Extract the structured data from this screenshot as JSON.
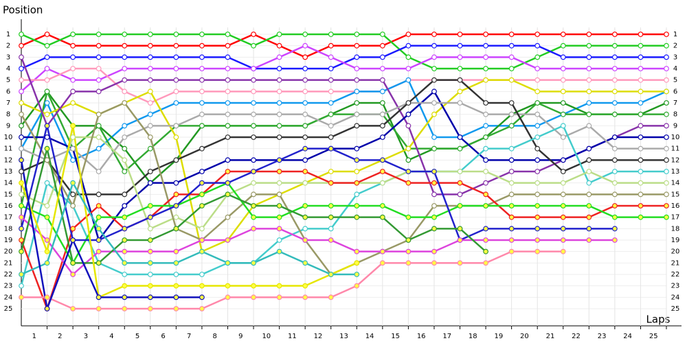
{
  "chart_data": {
    "type": "line",
    "y_label": "Position",
    "x_label": "Laps",
    "x": [
      0,
      1,
      2,
      3,
      4,
      5,
      6,
      7,
      8,
      9,
      10,
      11,
      12,
      13,
      14,
      15,
      16,
      17,
      18,
      19,
      20,
      21,
      22,
      23,
      24,
      25
    ],
    "xlim": [
      0,
      25
    ],
    "xticks": [
      1,
      2,
      3,
      4,
      5,
      6,
      7,
      8,
      9,
      10,
      11,
      12,
      13,
      14,
      15,
      16,
      17,
      18,
      19,
      20,
      21,
      22,
      23,
      24,
      25
    ],
    "ylim": [
      1,
      25
    ],
    "yticks": [
      1,
      2,
      3,
      4,
      5,
      6,
      7,
      8,
      9,
      10,
      11,
      12,
      13,
      14,
      15,
      16,
      17,
      18,
      19,
      20,
      21,
      22,
      23,
      24,
      25
    ],
    "y_inverted": true,
    "grid": true,
    "series": [
      {
        "color": "#ff0000",
        "values": [
          2,
          1,
          2,
          2,
          2,
          2,
          2,
          2,
          2,
          1,
          2,
          3,
          2,
          2,
          2,
          1,
          1,
          1,
          1,
          1,
          1,
          1,
          1,
          1,
          1,
          1
        ]
      },
      {
        "color": "#22cc22",
        "values": [
          1,
          2,
          1,
          1,
          1,
          1,
          1,
          1,
          1,
          2,
          1,
          1,
          1,
          1,
          1,
          3,
          4,
          4,
          4,
          4,
          3,
          2,
          2,
          2,
          2,
          2
        ]
      },
      {
        "color": "#1a1aff",
        "values": [
          4,
          3,
          3,
          3,
          3,
          3,
          3,
          3,
          3,
          4,
          4,
          4,
          4,
          3,
          3,
          2,
          2,
          2,
          2,
          2,
          2,
          3,
          3,
          3,
          3,
          3
        ]
      },
      {
        "color": "#cc44ff",
        "values": [
          6,
          4,
          5,
          5,
          4,
          4,
          4,
          4,
          4,
          4,
          3,
          2,
          3,
          4,
          4,
          4,
          3,
          3,
          3,
          3,
          4,
          4,
          4,
          4,
          4,
          4
        ]
      },
      {
        "color": "#ff99bb",
        "values": [
          5,
          5,
          4,
          4,
          6,
          7,
          6,
          6,
          6,
          6,
          6,
          6,
          6,
          6,
          6,
          5,
          5,
          5,
          5,
          5,
          5,
          5,
          5,
          5,
          5,
          5
        ]
      },
      {
        "color": "#1199ee",
        "values": [
          11,
          7,
          12,
          11,
          9,
          8,
          7,
          7,
          7,
          7,
          7,
          7,
          7,
          6,
          6,
          5,
          10,
          10,
          9,
          9,
          9,
          8,
          7,
          7,
          7,
          6
        ]
      },
      {
        "color": "#229922",
        "values": [
          9,
          6,
          9,
          9,
          11,
          14,
          12,
          9,
          9,
          9,
          9,
          9,
          8,
          7,
          7,
          12,
          11,
          11,
          10,
          8,
          7,
          7,
          8,
          8,
          8,
          7
        ]
      },
      {
        "color": "#33aa33",
        "values": [
          16,
          6,
          11,
          9,
          13,
          11,
          9,
          9,
          9,
          9,
          9,
          9,
          8,
          8,
          8,
          11,
          11,
          11,
          10,
          9,
          7,
          8,
          8,
          8,
          8,
          8
        ]
      },
      {
        "color": "#dddd00",
        "values": [
          7,
          8,
          7,
          8,
          7,
          6,
          10,
          20,
          19,
          16,
          15,
          14,
          13,
          13,
          12,
          11,
          8,
          6,
          5,
          5,
          6,
          6,
          6,
          6,
          6,
          6
        ]
      },
      {
        "color": "#8833aa",
        "values": [
          3,
          9,
          6,
          6,
          5,
          5,
          5,
          5,
          5,
          5,
          5,
          5,
          5,
          5,
          5,
          9,
          15,
          15,
          14,
          13,
          13,
          12,
          11,
          10,
          9,
          9
        ]
      },
      {
        "color": "#0000aa",
        "values": [
          10,
          10,
          11,
          19,
          16,
          14,
          14,
          13,
          12,
          12,
          12,
          12,
          11,
          11,
          10,
          8,
          6,
          10,
          12,
          12,
          12,
          12,
          11,
          10,
          10,
          10
        ]
      },
      {
        "color": "#aaaaaa",
        "values": [
          11,
          12,
          11,
          13,
          10,
          9,
          9,
          8,
          8,
          8,
          8,
          8,
          9,
          8,
          8,
          7,
          7,
          7,
          8,
          8,
          8,
          10,
          9,
          11,
          11,
          11
        ]
      },
      {
        "color": "#333333",
        "values": [
          13,
          12,
          15,
          15,
          15,
          13,
          12,
          11,
          10,
          10,
          10,
          10,
          10,
          9,
          9,
          7,
          5,
          5,
          7,
          7,
          11,
          13,
          12,
          12,
          12,
          12
        ]
      },
      {
        "color": "#44cccc",
        "values": [
          23,
          14,
          16,
          21,
          22,
          22,
          22,
          22,
          21,
          21,
          19,
          18,
          18,
          15,
          14,
          13,
          13,
          13,
          11,
          11,
          10,
          9,
          14,
          13,
          13,
          13
        ]
      },
      {
        "color": "#bbdd88",
        "values": [
          15,
          16,
          10,
          10,
          12,
          18,
          17,
          18,
          15,
          14,
          14,
          14,
          14,
          14,
          14,
          13,
          13,
          13,
          13,
          14,
          14,
          14,
          13,
          14,
          14,
          14
        ]
      },
      {
        "color": "#999966",
        "values": [
          8,
          12,
          16,
          8,
          7,
          10,
          18,
          19,
          17,
          15,
          15,
          19,
          22,
          21,
          20,
          19,
          16,
          16,
          16,
          15,
          15,
          15,
          15,
          15,
          15,
          15
        ]
      },
      {
        "color": "#ee2222",
        "marker_fill": "#ffff44",
        "values": [
          19,
          25,
          18,
          16,
          18,
          17,
          15,
          15,
          13,
          13,
          13,
          13,
          14,
          14,
          13,
          14,
          14,
          14,
          15,
          17,
          17,
          17,
          17,
          16,
          16,
          16
        ]
      },
      {
        "color": "#22dd22",
        "marker_fill": "#ffff44",
        "values": [
          16,
          17,
          21,
          17,
          17,
          16,
          16,
          15,
          14,
          17,
          17,
          16,
          16,
          16,
          16,
          17,
          17,
          16,
          16,
          16,
          16,
          16,
          16,
          17,
          17,
          17
        ]
      },
      {
        "color": "#2222cc",
        "marker_fill": "#ffff44",
        "values": [
          18,
          9,
          19,
          19,
          18,
          17,
          16,
          14,
          14,
          13,
          12,
          11,
          11,
          12,
          12,
          13,
          13,
          19,
          18,
          18,
          18,
          18,
          18,
          18,
          null,
          null
        ]
      },
      {
        "color": "#dd44dd",
        "marker_fill": "#ffff44",
        "values": [
          17,
          19,
          22,
          20,
          20,
          20,
          20,
          19,
          19,
          18,
          18,
          19,
          19,
          20,
          20,
          20,
          20,
          19,
          19,
          19,
          19,
          19,
          19,
          19,
          null,
          null
        ]
      },
      {
        "color": "#339933",
        "marker_fill": "#ffff44",
        "values": [
          20,
          11,
          21,
          21,
          19,
          19,
          18,
          16,
          15,
          16,
          16,
          17,
          17,
          17,
          17,
          19,
          18,
          18,
          20,
          null,
          null,
          null,
          null,
          null,
          null,
          null
        ]
      },
      {
        "color": "#ff88aa",
        "marker_fill": "#ffff44",
        "values": [
          24,
          24,
          25,
          25,
          25,
          25,
          25,
          25,
          24,
          24,
          24,
          24,
          24,
          23,
          21,
          21,
          21,
          21,
          21,
          20,
          20,
          20,
          null,
          null,
          null,
          null
        ]
      },
      {
        "color": "#e6e600",
        "marker_fill": "#ffff44",
        "values": [
          14,
          20,
          9,
          24,
          23,
          23,
          23,
          23,
          23,
          23,
          23,
          23,
          22,
          21,
          null,
          null,
          null,
          null,
          null,
          null,
          null,
          null,
          null,
          null,
          null,
          null
        ]
      },
      {
        "color": "#33bbbb",
        "marker_fill": "#ffff44",
        "values": [
          22,
          21,
          14,
          18,
          21,
          21,
          21,
          20,
          21,
          21,
          20,
          21,
          22,
          22,
          null,
          null,
          null,
          null,
          null,
          null,
          null,
          null,
          null,
          null,
          null,
          null
        ]
      },
      {
        "color": "#1111bb",
        "marker_fill": "#ffff44",
        "values": [
          12,
          25,
          19,
          24,
          24,
          24,
          24,
          24,
          null,
          null,
          null,
          null,
          null,
          null,
          null,
          null,
          null,
          null,
          null,
          null,
          null,
          null,
          null,
          null,
          null,
          null
        ]
      }
    ]
  }
}
